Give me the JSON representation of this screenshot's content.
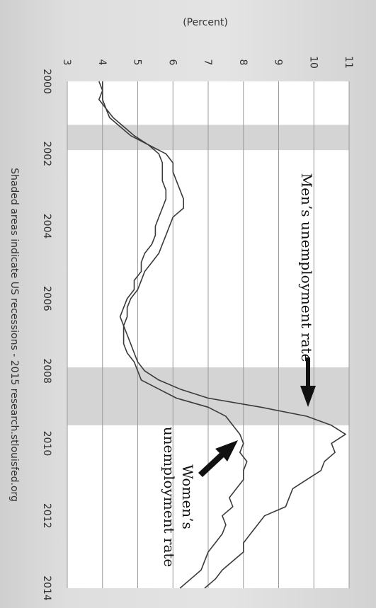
{
  "chart_data": {
    "type": "line",
    "unit_label": "(Percent)",
    "source_note": "Shaded areas indicate US recessions - 2015 research.stlouisfed.org",
    "xlim": [
      2000,
      2014
    ],
    "ylim": [
      3,
      11
    ],
    "x_ticks": [
      "2000",
      "2002",
      "2004",
      "2006",
      "2008",
      "2010",
      "2012",
      "2014"
    ],
    "y_ticks": [
      "3",
      "4",
      "5",
      "6",
      "7",
      "8",
      "9",
      "10",
      "11"
    ],
    "grid": true,
    "recessions": [
      {
        "start": 2001.2,
        "end": 2001.9
      },
      {
        "start": 2007.9,
        "end": 2009.5
      }
    ],
    "series": [
      {
        "key": "men",
        "x": [
          2000.0,
          2000.25,
          2000.5,
          2000.75,
          2001.0,
          2001.25,
          2001.5,
          2001.75,
          2002.0,
          2002.25,
          2002.5,
          2002.75,
          2003.0,
          2003.25,
          2003.5,
          2003.75,
          2004.0,
          2004.25,
          2004.5,
          2004.75,
          2005.0,
          2005.25,
          2005.5,
          2005.75,
          2006.0,
          2006.25,
          2006.5,
          2006.75,
          2007.0,
          2007.25,
          2007.5,
          2007.75,
          2008.0,
          2008.25,
          2008.5,
          2008.75,
          2009.0,
          2009.25,
          2009.5,
          2009.75,
          2010.0,
          2010.25,
          2010.5,
          2010.75,
          2011.0,
          2011.25,
          2011.5,
          2011.75,
          2012.0,
          2012.25,
          2012.5,
          2012.75,
          2013.0,
          2013.25,
          2013.5,
          2013.75,
          2014.0
        ],
        "values": [
          3.9,
          4.0,
          4.0,
          4.1,
          4.3,
          4.6,
          4.9,
          5.3,
          5.8,
          6.0,
          6.0,
          6.1,
          6.2,
          6.3,
          6.3,
          6.0,
          5.9,
          5.8,
          5.7,
          5.6,
          5.4,
          5.2,
          5.1,
          5.0,
          4.8,
          4.7,
          4.7,
          4.6,
          4.7,
          4.8,
          4.9,
          5.0,
          5.2,
          5.6,
          6.2,
          7.0,
          8.5,
          9.8,
          10.5,
          10.9,
          10.5,
          10.6,
          10.3,
          10.2,
          9.8,
          9.4,
          9.3,
          9.2,
          8.6,
          8.4,
          8.2,
          8.0,
          8.0,
          7.7,
          7.4,
          7.2,
          6.9
        ]
      },
      {
        "key": "women",
        "x": [
          2000.0,
          2000.25,
          2000.5,
          2000.75,
          2001.0,
          2001.25,
          2001.5,
          2001.75,
          2002.0,
          2002.25,
          2002.5,
          2002.75,
          2003.0,
          2003.25,
          2003.5,
          2003.75,
          2004.0,
          2004.25,
          2004.5,
          2004.75,
          2005.0,
          2005.25,
          2005.5,
          2005.75,
          2006.0,
          2006.25,
          2006.5,
          2006.75,
          2007.0,
          2007.25,
          2007.5,
          2007.75,
          2008.0,
          2008.25,
          2008.5,
          2008.75,
          2009.0,
          2009.25,
          2009.5,
          2009.75,
          2010.0,
          2010.25,
          2010.5,
          2010.75,
          2011.0,
          2011.25,
          2011.5,
          2011.75,
          2012.0,
          2012.25,
          2012.5,
          2012.75,
          2013.0,
          2013.25,
          2013.5,
          2013.75,
          2014.0
        ],
        "values": [
          4.0,
          4.0,
          3.9,
          4.1,
          4.2,
          4.5,
          4.8,
          5.3,
          5.6,
          5.7,
          5.7,
          5.7,
          5.8,
          5.8,
          5.7,
          5.6,
          5.5,
          5.5,
          5.4,
          5.2,
          5.1,
          5.1,
          4.9,
          4.9,
          4.7,
          4.6,
          4.5,
          4.6,
          4.6,
          4.6,
          4.7,
          4.9,
          5.0,
          5.1,
          5.6,
          6.1,
          7.0,
          7.5,
          7.7,
          7.9,
          8.0,
          7.9,
          8.1,
          8.0,
          8.0,
          7.8,
          7.6,
          7.7,
          7.4,
          7.5,
          7.4,
          7.2,
          7.0,
          6.9,
          6.8,
          6.5,
          6.2
        ]
      }
    ],
    "annotations": [
      {
        "key": "men",
        "text": "Men’s unemployment rate"
      },
      {
        "key": "women",
        "lines": [
          "Women’s",
          "unemployment rate"
        ]
      }
    ]
  }
}
